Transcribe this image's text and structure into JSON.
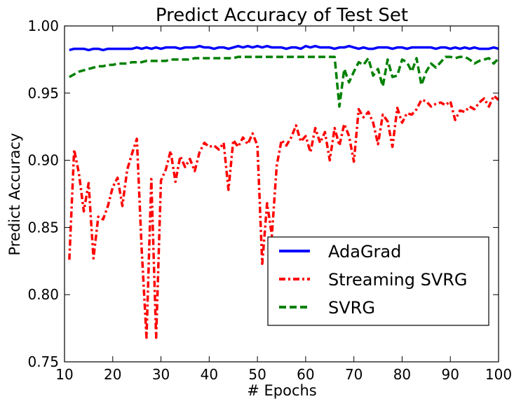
{
  "chart_data": {
    "type": "line",
    "title": "Predict Accuracy of Test Set",
    "xlabel": "# Epochs",
    "ylabel": "Predict Accuracy",
    "xlim": [
      10,
      100
    ],
    "ylim": [
      0.75,
      1.0
    ],
    "xticks": [
      10,
      20,
      30,
      40,
      50,
      60,
      70,
      80,
      90,
      100
    ],
    "xtick_labels": [
      "10",
      "20",
      "30",
      "40",
      "50",
      "60",
      "70",
      "80",
      "90",
      "100"
    ],
    "yticks": [
      0.75,
      0.8,
      0.85,
      0.9,
      0.95,
      1.0
    ],
    "ytick_labels": [
      "0.75",
      "0.80",
      "0.85",
      "0.90",
      "0.95",
      "1.00"
    ],
    "grid": false,
    "legend_position": "lower-right",
    "x": [
      11,
      12,
      13,
      14,
      15,
      16,
      17,
      18,
      19,
      20,
      21,
      22,
      23,
      24,
      25,
      26,
      27,
      28,
      29,
      30,
      31,
      32,
      33,
      34,
      35,
      36,
      37,
      38,
      39,
      40,
      41,
      42,
      43,
      44,
      45,
      46,
      47,
      48,
      49,
      50,
      51,
      52,
      53,
      54,
      55,
      56,
      57,
      58,
      59,
      60,
      61,
      62,
      63,
      64,
      65,
      66,
      67,
      68,
      69,
      70,
      71,
      72,
      73,
      74,
      75,
      76,
      77,
      78,
      79,
      80,
      81,
      82,
      83,
      84,
      85,
      86,
      87,
      88,
      89,
      90,
      91,
      92,
      93,
      94,
      95,
      96,
      97,
      98,
      99,
      100
    ],
    "series": [
      {
        "name": "AdaGrad",
        "color": "#0000ff",
        "style": "solid",
        "values": [
          0.982,
          0.983,
          0.983,
          0.983,
          0.982,
          0.983,
          0.983,
          0.982,
          0.983,
          0.983,
          0.983,
          0.983,
          0.983,
          0.983,
          0.984,
          0.983,
          0.984,
          0.983,
          0.984,
          0.983,
          0.984,
          0.984,
          0.984,
          0.983,
          0.984,
          0.984,
          0.984,
          0.985,
          0.984,
          0.984,
          0.983,
          0.984,
          0.984,
          0.983,
          0.984,
          0.985,
          0.984,
          0.985,
          0.984,
          0.985,
          0.984,
          0.985,
          0.984,
          0.984,
          0.984,
          0.983,
          0.984,
          0.984,
          0.983,
          0.985,
          0.984,
          0.985,
          0.984,
          0.984,
          0.984,
          0.983,
          0.984,
          0.984,
          0.985,
          0.984,
          0.983,
          0.984,
          0.983,
          0.983,
          0.984,
          0.984,
          0.984,
          0.983,
          0.984,
          0.984,
          0.983,
          0.984,
          0.984,
          0.984,
          0.984,
          0.984,
          0.983,
          0.984,
          0.984,
          0.983,
          0.984,
          0.983,
          0.984,
          0.983,
          0.984,
          0.983,
          0.983,
          0.983,
          0.984,
          0.983
        ]
      },
      {
        "name": "Streaming SVRG",
        "color": "#ff0000",
        "style": "dashdot",
        "values": [
          0.826,
          0.908,
          0.89,
          0.862,
          0.883,
          0.827,
          0.858,
          0.856,
          0.866,
          0.88,
          0.887,
          0.866,
          0.893,
          0.905,
          0.916,
          0.834,
          0.768,
          0.886,
          0.768,
          0.885,
          0.893,
          0.907,
          0.884,
          0.903,
          0.895,
          0.901,
          0.892,
          0.906,
          0.913,
          0.91,
          0.911,
          0.908,
          0.913,
          0.878,
          0.915,
          0.91,
          0.917,
          0.912,
          0.92,
          0.911,
          0.823,
          0.868,
          0.844,
          0.896,
          0.915,
          0.911,
          0.917,
          0.926,
          0.914,
          0.918,
          0.906,
          0.924,
          0.913,
          0.921,
          0.9,
          0.924,
          0.911,
          0.927,
          0.918,
          0.899,
          0.938,
          0.932,
          0.936,
          0.928,
          0.912,
          0.934,
          0.929,
          0.91,
          0.939,
          0.928,
          0.935,
          0.934,
          0.938,
          0.945,
          0.944,
          0.94,
          0.942,
          0.943,
          0.941,
          0.944,
          0.93,
          0.937,
          0.936,
          0.94,
          0.938,
          0.943,
          0.946,
          0.94,
          0.948,
          0.945
        ]
      },
      {
        "name": "SVRG",
        "color": "#008000",
        "style": "dashed",
        "values": [
          0.962,
          0.964,
          0.966,
          0.967,
          0.968,
          0.969,
          0.97,
          0.97,
          0.971,
          0.971,
          0.972,
          0.972,
          0.972,
          0.973,
          0.973,
          0.973,
          0.974,
          0.974,
          0.974,
          0.974,
          0.974,
          0.975,
          0.975,
          0.975,
          0.975,
          0.975,
          0.976,
          0.976,
          0.976,
          0.976,
          0.976,
          0.976,
          0.976,
          0.976,
          0.976,
          0.977,
          0.977,
          0.977,
          0.977,
          0.977,
          0.977,
          0.977,
          0.977,
          0.977,
          0.977,
          0.977,
          0.977,
          0.977,
          0.977,
          0.977,
          0.977,
          0.977,
          0.977,
          0.977,
          0.977,
          0.977,
          0.94,
          0.968,
          0.958,
          0.966,
          0.973,
          0.971,
          0.976,
          0.963,
          0.968,
          0.955,
          0.975,
          0.962,
          0.963,
          0.975,
          0.973,
          0.966,
          0.976,
          0.956,
          0.966,
          0.972,
          0.969,
          0.973,
          0.977,
          0.977,
          0.976,
          0.977,
          0.977,
          0.975,
          0.972,
          0.974,
          0.975,
          0.976,
          0.972,
          0.976
        ]
      }
    ]
  }
}
